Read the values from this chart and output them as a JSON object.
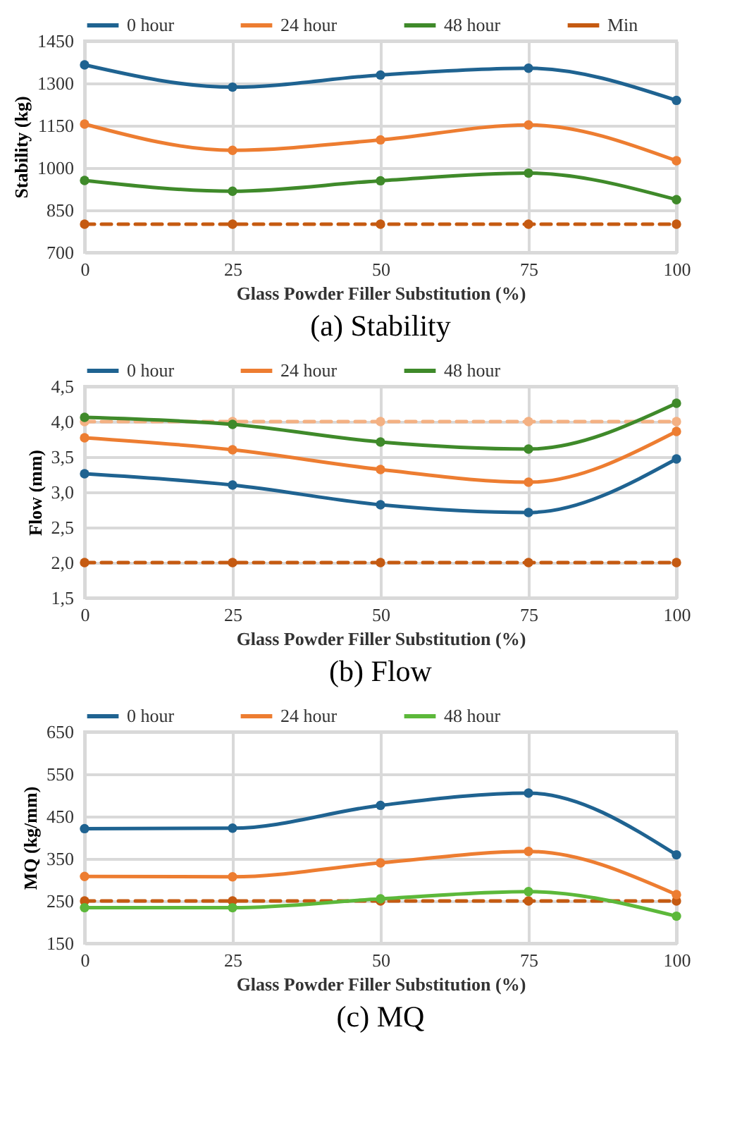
{
  "chart_data": [
    {
      "type": "line",
      "title": "(a) Stability",
      "xlabel": "Glass Powder Filler Substitution (%)",
      "ylabel": "Stability (kg)",
      "x": [
        0,
        25,
        50,
        75,
        100
      ],
      "xlim": [
        0,
        100
      ],
      "xticks": [
        0,
        25,
        50,
        75,
        100
      ],
      "ylim": [
        700,
        1450
      ],
      "yticks": [
        700,
        850,
        1000,
        1150,
        1300,
        1450
      ],
      "grid": true,
      "legend": "top",
      "marker": "circle",
      "series": [
        {
          "name": "0 hour",
          "color": "#1f6391",
          "values": [
            1365,
            1286,
            1329,
            1353,
            1239
          ]
        },
        {
          "name": "24 hour",
          "color": "#ed7d31",
          "values": [
            1155,
            1062,
            1099,
            1152,
            1025
          ]
        },
        {
          "name": "48 hour",
          "color": "#3f8a2a",
          "values": [
            955,
            917,
            954,
            981,
            887
          ]
        },
        {
          "name": "Min",
          "color": "#c55a11",
          "line_style": "dashed",
          "values": [
            800,
            800,
            800,
            800,
            800
          ]
        }
      ]
    },
    {
      "type": "line",
      "title": "(b) Flow",
      "xlabel": "Glass Powder Filler Substitution (%)",
      "ylabel": "Flow (mm)",
      "x": [
        0,
        25,
        50,
        75,
        100
      ],
      "xlim": [
        0,
        100
      ],
      "xticks": [
        0,
        25,
        50,
        75,
        100
      ],
      "ylim": [
        1.5,
        4.5
      ],
      "yticks": [
        {
          "value": 1.5,
          "label": "1,5"
        },
        {
          "value": 2,
          "label": "2,0"
        },
        {
          "value": 2.5,
          "label": "2,5"
        },
        {
          "value": 3,
          "label": "3,0"
        },
        {
          "value": 3.5,
          "label": "3,5"
        },
        {
          "value": 4,
          "label": "4,0"
        },
        {
          "value": 4.5,
          "label": "4,5"
        }
      ],
      "grid": true,
      "legend": "top",
      "marker": "circle",
      "series": [
        {
          "color": "#f4b183",
          "line_style": "dashed",
          "values": [
            4,
            4,
            4,
            4,
            4
          ]
        },
        {
          "color": "#c55a11",
          "line_style": "dashed",
          "values": [
            2,
            2,
            2,
            2,
            2
          ]
        },
        {
          "name": "0 hour",
          "color": "#1f6391",
          "values": [
            3.26,
            3.1,
            2.82,
            2.71,
            3.47
          ]
        },
        {
          "name": "24 hour",
          "color": "#ed7d31",
          "values": [
            3.77,
            3.6,
            3.32,
            3.14,
            3.86
          ]
        },
        {
          "name": "48 hour",
          "color": "#3f8a2a",
          "values": [
            4.06,
            3.96,
            3.71,
            3.61,
            4.26
          ]
        }
      ]
    },
    {
      "type": "line",
      "title": "(c) MQ",
      "xlabel": "Glass Powder Filler Substitution (%)",
      "ylabel": "MQ (kg/mm)",
      "x": [
        0,
        25,
        50,
        75,
        100
      ],
      "xlim": [
        0,
        100
      ],
      "xticks": [
        0,
        25,
        50,
        75,
        100
      ],
      "ylim": [
        150,
        650
      ],
      "yticks": [
        150,
        250,
        350,
        450,
        550,
        650
      ],
      "grid": true,
      "legend": "top",
      "marker": "circle",
      "series": [
        {
          "color": "#c55a11",
          "line_style": "dashed",
          "values": [
            250,
            250,
            250,
            250,
            250
          ]
        },
        {
          "name": "0 hour",
          "color": "#1f6391",
          "values": [
            421,
            422,
            476,
            505,
            359
          ]
        },
        {
          "name": "24 hour",
          "color": "#ed7d31",
          "values": [
            308,
            307,
            340,
            367,
            265
          ]
        },
        {
          "name": "48 hour",
          "color": "#5cb83a",
          "values": [
            234,
            234,
            255,
            272,
            214
          ]
        }
      ]
    }
  ]
}
